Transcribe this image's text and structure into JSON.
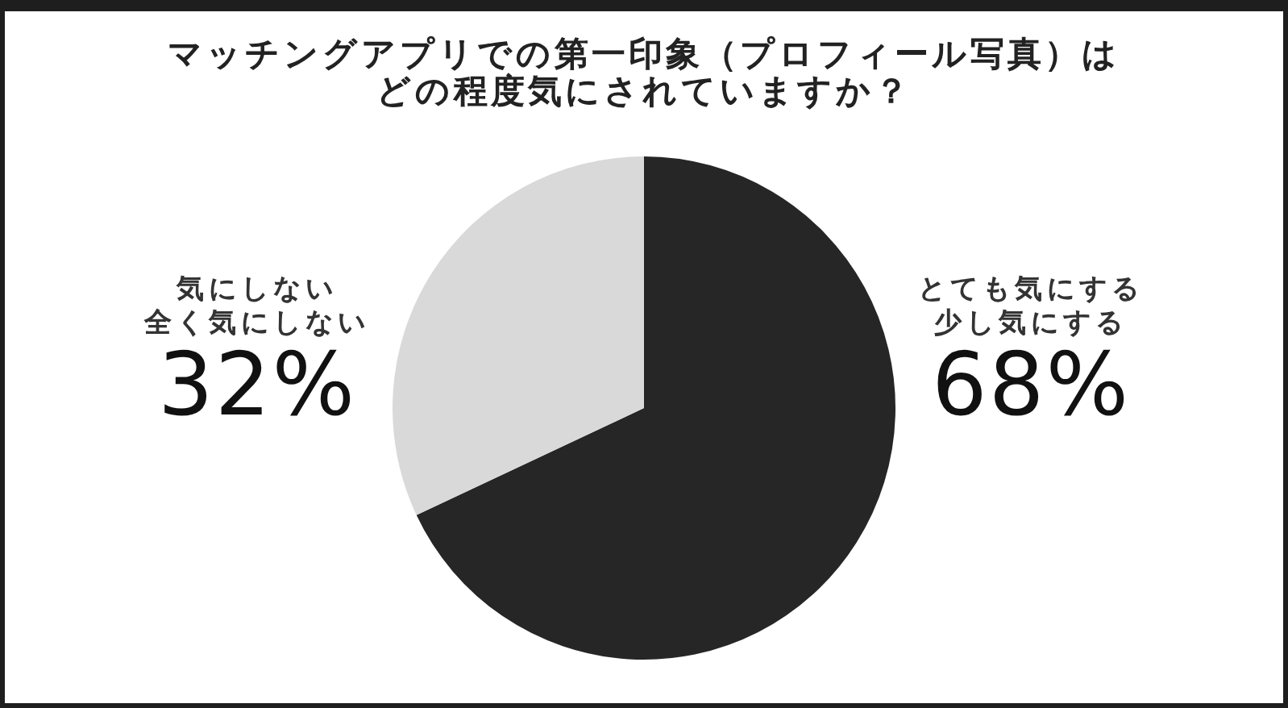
{
  "chart_data": {
    "type": "pie",
    "title": "マッチングアプリでの第一印象（プロフィール写真）はどの程度気にされていますか？",
    "categories": [
      "とても気にする少し気にする",
      "気にしない全く気にしない"
    ],
    "values": [
      68,
      32
    ],
    "colors": [
      "#262626",
      "#d9d9d9"
    ],
    "value_labels": [
      "68%",
      "32%"
    ]
  }
}
